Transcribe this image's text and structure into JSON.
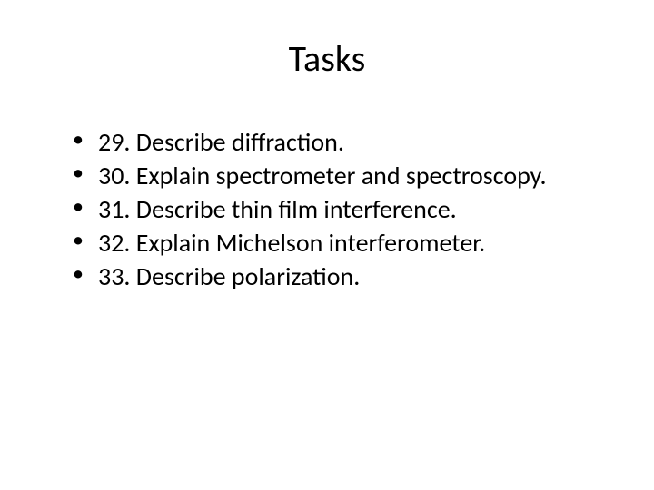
{
  "slide": {
    "title": "Tasks",
    "items": [
      "29. Describe diffraction.",
      "30. Explain spectrometer and spectroscopy.",
      "31. Describe thin film interference.",
      "32. Explain Michelson interferometer.",
      "33. Describe polarization."
    ],
    "background_color": "#ffffff",
    "text_color": "#000000",
    "title_fontsize": 40,
    "body_fontsize": 28,
    "font_family": "Calibri"
  }
}
